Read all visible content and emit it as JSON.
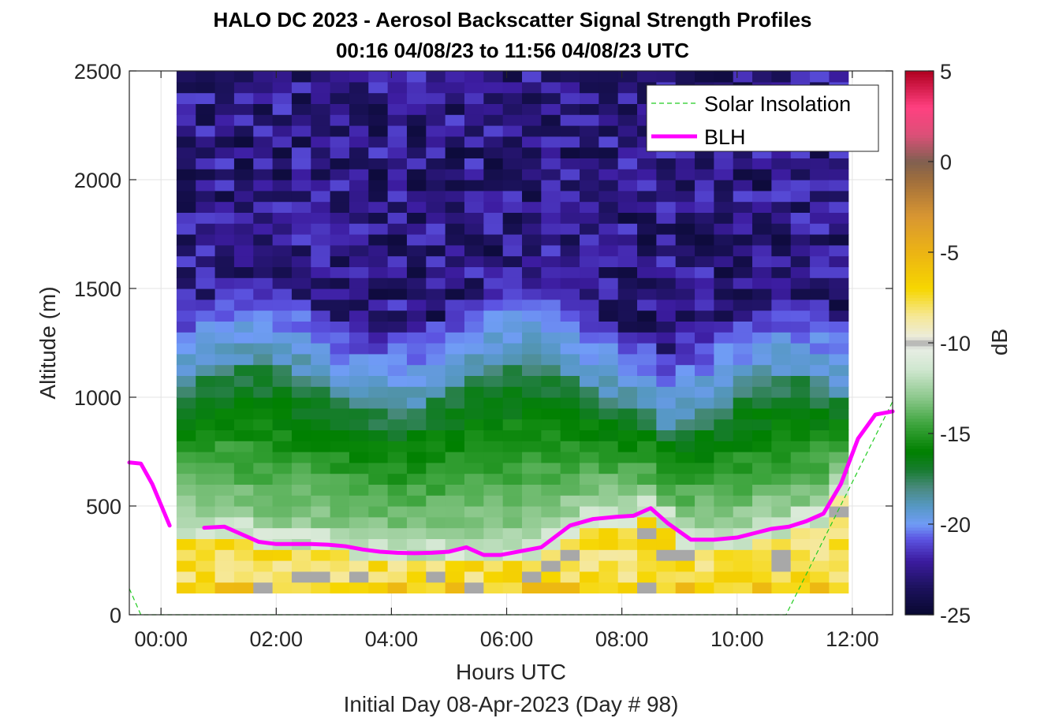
{
  "chart_data": {
    "type": "heatmap",
    "title": "HALO DC 2023 - Aerosol Backscatter Signal Strength Profiles",
    "subtitle": "00:16 04/08/23 to 11:56 04/08/23  UTC",
    "xlabel": "Hours UTC",
    "xlabel2": "Initial Day 08-Apr-2023 (Day # 98)",
    "ylabel": "Altitude (m)",
    "colorbar_label": "dB",
    "xlim": [
      -0.55,
      12.7
    ],
    "ylim": [
      0,
      2500
    ],
    "clim": [
      -25,
      5
    ],
    "x_ticks": [
      0,
      2,
      4,
      6,
      8,
      10,
      12
    ],
    "x_tick_labels": [
      "00:00",
      "02:00",
      "04:00",
      "06:00",
      "08:00",
      "10:00",
      "12:00"
    ],
    "y_ticks": [
      0,
      500,
      1000,
      1500,
      2000,
      2500
    ],
    "y_tick_labels": [
      "0",
      "500",
      "1000",
      "1500",
      "2000",
      "2500"
    ],
    "colorbar_ticks": [
      -25,
      -20,
      -15,
      -10,
      -5,
      0,
      5
    ],
    "colorbar_tick_labels": [
      "-25",
      "-20",
      "-15",
      "-10",
      "-5",
      "0",
      "5"
    ],
    "grid": true,
    "legend_position": "top-right",
    "legend": [
      {
        "name": "Solar Insolation",
        "color": "#22cc22",
        "style": "dashed"
      },
      {
        "name": "BLH",
        "color": "#ff00ff",
        "style": "solid"
      }
    ],
    "heatmap": {
      "x_start": 0.27,
      "x_end": 11.93,
      "n_cols": 35,
      "y_start": 100,
      "y_end": 2500,
      "n_rows": 48
    },
    "series": [
      {
        "name": "BLH",
        "color": "#ff00ff",
        "x": [
          -0.55,
          -0.35,
          -0.15,
          0.15,
          0.5,
          0.75,
          1.1,
          1.4,
          1.7,
          2.0,
          2.3,
          2.6,
          2.9,
          3.2,
          3.5,
          3.8,
          4.1,
          4.4,
          4.7,
          5.0,
          5.3,
          5.6,
          5.9,
          6.2,
          6.6,
          7.1,
          7.5,
          7.9,
          8.2,
          8.5,
          8.8,
          9.2,
          9.6,
          10.0,
          10.3,
          10.6,
          10.9,
          11.2,
          11.5,
          11.8,
          12.1,
          12.4,
          12.7
        ],
        "y": [
          700,
          695,
          600,
          410,
          null,
          400,
          405,
          370,
          335,
          325,
          325,
          325,
          322,
          315,
          300,
          290,
          285,
          283,
          285,
          290,
          310,
          275,
          275,
          290,
          310,
          410,
          440,
          450,
          455,
          490,
          420,
          345,
          345,
          355,
          375,
          395,
          405,
          430,
          465,
          600,
          810,
          920,
          935
        ]
      },
      {
        "name": "Solar Insolation",
        "color": "#22cc22",
        "x": [
          -0.55,
          -0.35,
          10.85,
          12.7
        ],
        "y": [
          120,
          0,
          0,
          980
        ]
      }
    ]
  }
}
